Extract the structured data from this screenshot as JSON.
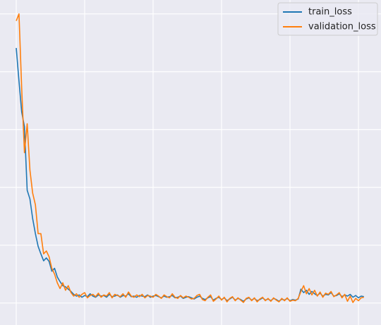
{
  "chart_data": {
    "type": "line",
    "x": [
      0,
      2,
      4,
      6,
      8,
      10,
      12,
      14,
      16,
      18,
      20,
      22,
      24,
      26,
      28,
      30,
      32,
      34,
      36,
      38,
      40,
      42,
      44,
      46,
      48,
      50,
      52,
      54,
      56,
      58,
      60,
      62,
      64,
      66,
      68,
      70,
      72,
      74,
      76,
      78,
      80,
      82,
      84,
      86,
      88,
      90,
      92,
      94,
      96,
      98,
      100,
      102,
      104,
      106,
      108,
      110,
      112,
      114,
      116,
      118,
      120,
      122,
      124,
      126,
      128,
      130,
      132,
      134,
      136,
      138,
      140,
      142,
      144,
      146,
      148,
      150,
      152,
      154,
      156,
      158,
      160,
      162,
      164,
      166,
      168,
      170,
      172,
      174,
      176,
      178,
      180,
      182,
      184,
      186,
      188,
      190,
      192,
      194,
      196,
      198,
      200,
      202,
      204,
      206,
      208,
      210,
      212,
      214,
      216,
      218,
      220,
      222,
      224,
      226,
      228,
      230,
      232,
      234,
      236,
      238,
      240,
      242,
      244,
      246,
      248,
      250,
      252,
      254
    ],
    "series": [
      {
        "name": "train_loss",
        "color": "#1f77b4",
        "values": [
          4.41,
          3.84,
          3.3,
          3.05,
          1.95,
          1.8,
          1.46,
          1.2,
          0.98,
          0.85,
          0.73,
          0.78,
          0.72,
          0.55,
          0.6,
          0.45,
          0.37,
          0.3,
          0.28,
          0.24,
          0.2,
          0.15,
          0.12,
          0.14,
          0.1,
          0.13,
          0.11,
          0.16,
          0.12,
          0.1,
          0.14,
          0.12,
          0.13,
          0.1,
          0.15,
          0.11,
          0.12,
          0.14,
          0.1,
          0.13,
          0.12,
          0.16,
          0.11,
          0.12,
          0.1,
          0.13,
          0.12,
          0.11,
          0.14,
          0.1,
          0.12,
          0.13,
          0.11,
          0.09,
          0.12,
          0.1,
          0.11,
          0.13,
          0.09,
          0.1,
          0.12,
          0.08,
          0.1,
          0.11,
          0.09,
          0.07,
          0.1,
          0.12,
          0.08,
          0.06,
          0.09,
          0.11,
          0.05,
          0.08,
          0.1,
          0.06,
          0.09,
          0.04,
          0.07,
          0.1,
          0.05,
          0.08,
          0.06,
          0.03,
          0.07,
          0.09,
          0.05,
          0.08,
          0.04,
          0.06,
          0.09,
          0.05,
          0.07,
          0.04,
          0.08,
          0.06,
          0.03,
          0.07,
          0.05,
          0.08,
          0.04,
          0.06,
          0.05,
          0.07,
          0.24,
          0.18,
          0.22,
          0.15,
          0.2,
          0.16,
          0.13,
          0.17,
          0.12,
          0.15,
          0.14,
          0.18,
          0.12,
          0.13,
          0.16,
          0.11,
          0.14,
          0.12,
          0.15,
          0.1,
          0.13,
          0.09,
          0.12,
          0.11
        ]
      },
      {
        "name": "validation_loss",
        "color": "#ff7f0e",
        "values": [
          4.88,
          5.0,
          3.7,
          2.6,
          3.1,
          2.3,
          1.9,
          1.7,
          1.2,
          1.2,
          0.85,
          0.9,
          0.8,
          0.6,
          0.5,
          0.35,
          0.25,
          0.35,
          0.22,
          0.3,
          0.18,
          0.12,
          0.16,
          0.1,
          0.15,
          0.18,
          0.09,
          0.13,
          0.15,
          0.11,
          0.17,
          0.1,
          0.14,
          0.12,
          0.18,
          0.09,
          0.15,
          0.13,
          0.11,
          0.16,
          0.1,
          0.19,
          0.12,
          0.1,
          0.14,
          0.11,
          0.15,
          0.09,
          0.13,
          0.12,
          0.1,
          0.15,
          0.12,
          0.08,
          0.14,
          0.11,
          0.09,
          0.16,
          0.1,
          0.08,
          0.13,
          0.09,
          0.12,
          0.1,
          0.07,
          0.08,
          0.13,
          0.15,
          0.06,
          0.04,
          0.1,
          0.14,
          0.03,
          0.07,
          0.12,
          0.05,
          0.1,
          0.02,
          0.08,
          0.11,
          0.04,
          0.09,
          0.05,
          0.01,
          0.08,
          0.1,
          0.04,
          0.09,
          0.02,
          0.07,
          0.1,
          0.04,
          0.08,
          0.03,
          0.09,
          0.05,
          0.02,
          0.08,
          0.04,
          0.09,
          0.03,
          0.05,
          0.04,
          0.08,
          0.2,
          0.3,
          0.16,
          0.25,
          0.14,
          0.22,
          0.12,
          0.19,
          0.1,
          0.17,
          0.15,
          0.2,
          0.11,
          0.14,
          0.18,
          0.09,
          0.15,
          0.03,
          0.12,
          0.01,
          0.08,
          0.04,
          0.09,
          0.1
        ]
      }
    ],
    "xlim": [
      -11.86,
      266.5
    ],
    "ylim": [
      -0.38,
      5.24
    ],
    "xticks": [
      0,
      50,
      100,
      150,
      200,
      250
    ],
    "yticks": [
      0,
      1,
      2,
      3,
      4,
      5
    ],
    "grid": true,
    "legend": "upper right"
  }
}
